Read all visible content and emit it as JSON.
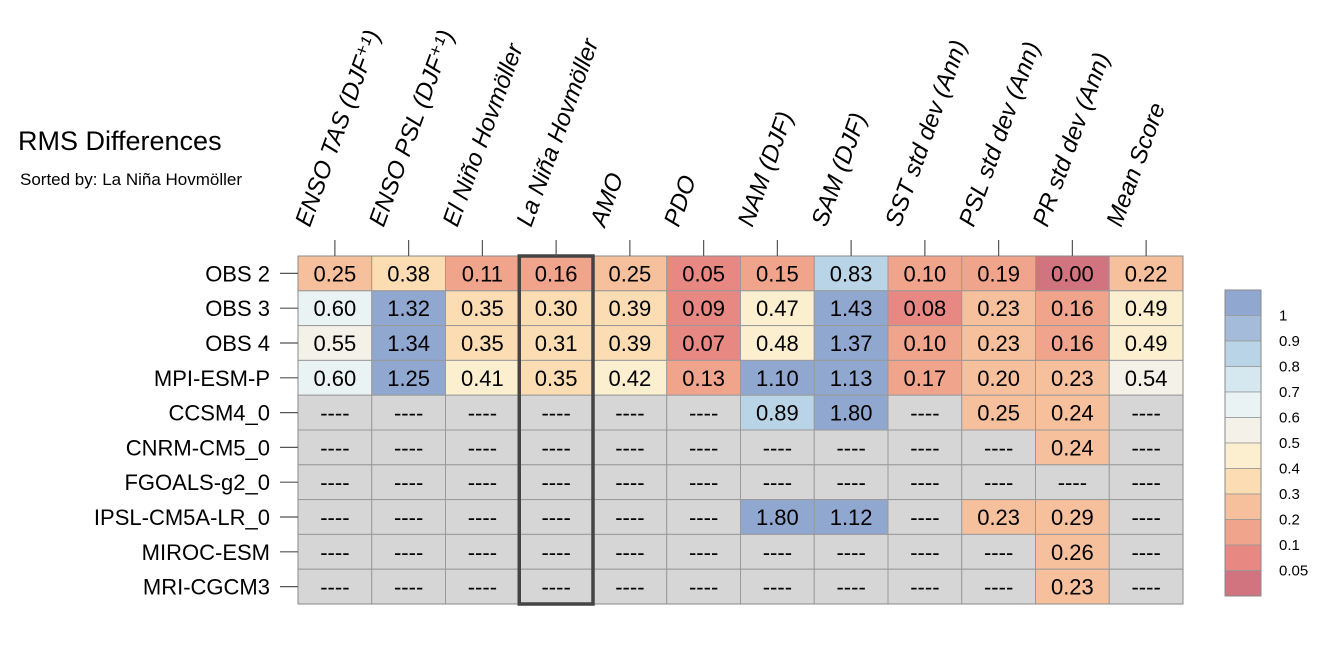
{
  "chart_data": {
    "type": "heatmap",
    "title": "RMS Differences",
    "subtitle": "Sorted by: La Niña Hovmöller",
    "columns": [
      "ENSO TAS (DJF⁺¹)",
      "ENSO PSL (DJF⁺¹)",
      "El Niño Hovmöller",
      "La Niña Hovmöller",
      "AMO",
      "PDO",
      "NAM (DJF)",
      "SAM (DJF)",
      "SST std dev (Ann)",
      "PSL std dev (Ann)",
      "PR std dev (Ann)",
      "Mean Score"
    ],
    "highlighted_column": "La Niña Hovmöller",
    "rows": [
      {
        "name": "OBS 2",
        "values": [
          0.25,
          0.38,
          0.11,
          0.16,
          0.25,
          0.05,
          0.15,
          0.83,
          0.1,
          0.19,
          0.0,
          0.22
        ]
      },
      {
        "name": "OBS 3",
        "values": [
          0.6,
          1.32,
          0.35,
          0.3,
          0.39,
          0.09,
          0.47,
          1.43,
          0.08,
          0.23,
          0.16,
          0.49
        ]
      },
      {
        "name": "OBS 4",
        "values": [
          0.55,
          1.34,
          0.35,
          0.31,
          0.39,
          0.07,
          0.48,
          1.37,
          0.1,
          0.23,
          0.16,
          0.49
        ]
      },
      {
        "name": "MPI-ESM-P",
        "values": [
          0.6,
          1.25,
          0.41,
          0.35,
          0.42,
          0.13,
          1.1,
          1.13,
          0.17,
          0.2,
          0.23,
          0.54
        ]
      },
      {
        "name": "CCSM4_0",
        "values": [
          null,
          null,
          null,
          null,
          null,
          null,
          0.89,
          1.8,
          null,
          0.25,
          0.24,
          null
        ]
      },
      {
        "name": "CNRM-CM5_0",
        "values": [
          null,
          null,
          null,
          null,
          null,
          null,
          null,
          null,
          null,
          null,
          0.24,
          null
        ]
      },
      {
        "name": "FGOALS-g2_0",
        "values": [
          null,
          null,
          null,
          null,
          null,
          null,
          null,
          null,
          null,
          null,
          null,
          null
        ]
      },
      {
        "name": "IPSL-CM5A-LR_0",
        "values": [
          null,
          null,
          null,
          null,
          null,
          null,
          1.8,
          1.12,
          null,
          0.23,
          0.29,
          null
        ]
      },
      {
        "name": "MIROC-ESM",
        "values": [
          null,
          null,
          null,
          null,
          null,
          null,
          null,
          null,
          null,
          null,
          0.26,
          null
        ]
      },
      {
        "name": "MRI-CGCM3",
        "values": [
          null,
          null,
          null,
          null,
          null,
          null,
          null,
          null,
          null,
          null,
          0.23,
          null
        ]
      }
    ],
    "missing_label": "----",
    "missing_color": "#d6d6d6",
    "colorbar": {
      "labels": [
        "1",
        "0.9",
        "0.8",
        "0.7",
        "0.6",
        "0.5",
        "0.4",
        "0.3",
        "0.2",
        "0.1",
        "0.05"
      ],
      "bounds": [
        1.0,
        0.9,
        0.8,
        0.7,
        0.6,
        0.5,
        0.4,
        0.3,
        0.2,
        0.1,
        0.05
      ],
      "colors": [
        "#90a7cf",
        "#a4bbda",
        "#b9d4e6",
        "#d5e8f0",
        "#eaf3f3",
        "#f3f1e8",
        "#fcefd0",
        "#fbdcb3",
        "#f7c09c",
        "#f1a48c",
        "#e88883",
        "#d2747f"
      ]
    }
  }
}
